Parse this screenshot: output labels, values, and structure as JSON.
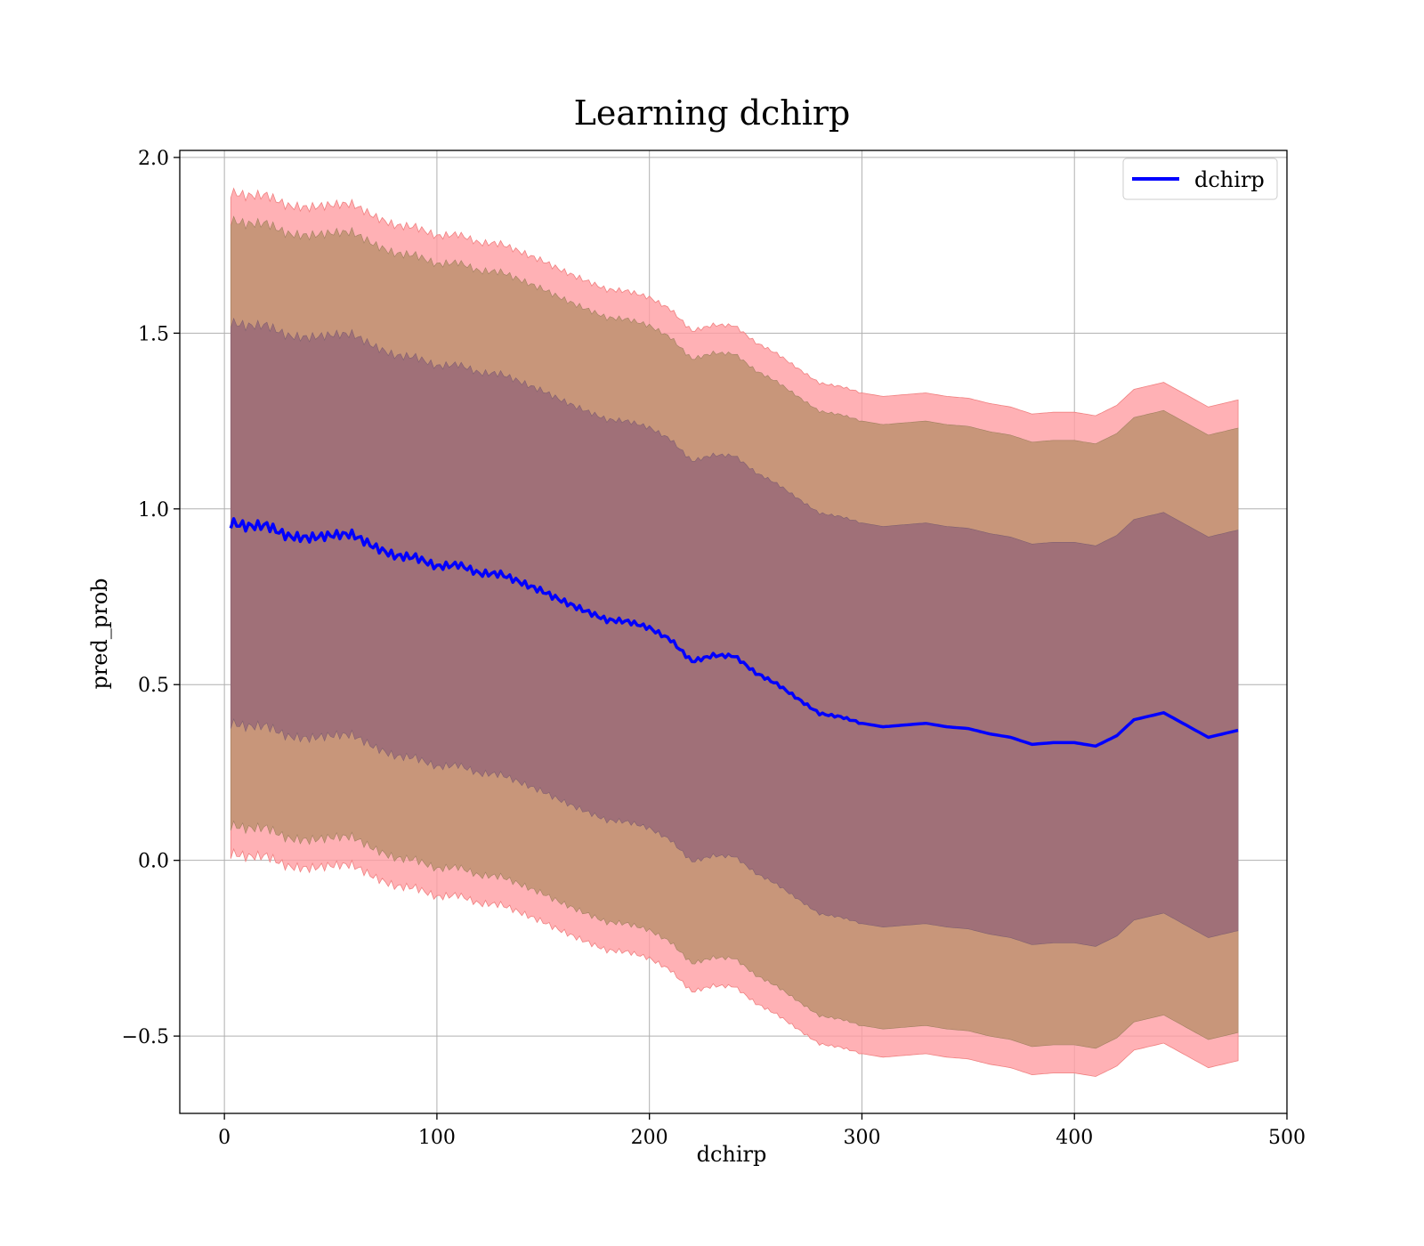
{
  "chart_data": {
    "type": "line",
    "title": "Learning dchirp",
    "xlabel": "dchirp",
    "ylabel": "pred_prob",
    "xlim": [
      -21,
      500
    ],
    "ylim": [
      -0.72,
      2.02
    ],
    "xticks": [
      0,
      100,
      200,
      300,
      400,
      500
    ],
    "yticks": [
      -0.5,
      0.0,
      0.5,
      1.0,
      1.5,
      2.0
    ],
    "xtick_labels": [
      "0",
      "100",
      "200",
      "300",
      "400",
      "500"
    ],
    "ytick_labels": [
      "−0.5",
      "0.0",
      "0.5",
      "1.0",
      "1.5",
      "2.0"
    ],
    "grid": true,
    "legend": {
      "position": "top-right",
      "entries": [
        "dchirp"
      ]
    },
    "colors": {
      "line": "#0000ff",
      "band_outer": "#ff9ea2",
      "band_middle": "#c8967a",
      "band_inner": "#a07078"
    },
    "series": [
      {
        "name": "dchirp",
        "x": [
          3,
          10,
          20,
          30,
          40,
          50,
          60,
          70,
          80,
          90,
          100,
          110,
          120,
          130,
          140,
          150,
          160,
          170,
          180,
          190,
          200,
          210,
          220,
          230,
          240,
          250,
          260,
          270,
          280,
          290,
          300,
          310,
          320,
          330,
          340,
          350,
          360,
          370,
          380,
          390,
          400,
          410,
          420,
          428,
          442,
          463,
          477
        ],
        "y": [
          0.95,
          0.95,
          0.96,
          0.93,
          0.92,
          0.92,
          0.92,
          0.89,
          0.87,
          0.87,
          0.84,
          0.84,
          0.81,
          0.81,
          0.79,
          0.77,
          0.74,
          0.71,
          0.68,
          0.675,
          0.66,
          0.63,
          0.57,
          0.585,
          0.58,
          0.53,
          0.5,
          0.46,
          0.42,
          0.41,
          0.39,
          0.38,
          0.385,
          0.39,
          0.38,
          0.375,
          0.36,
          0.35,
          0.33,
          0.335,
          0.335,
          0.325,
          0.355,
          0.4,
          0.42,
          0.35,
          0.37
        ]
      }
    ],
    "bands": {
      "inner": {
        "half_width": 0.57
      },
      "middle": {
        "half_width": 0.86
      },
      "outer": {
        "half_width": 0.94
      }
    }
  }
}
